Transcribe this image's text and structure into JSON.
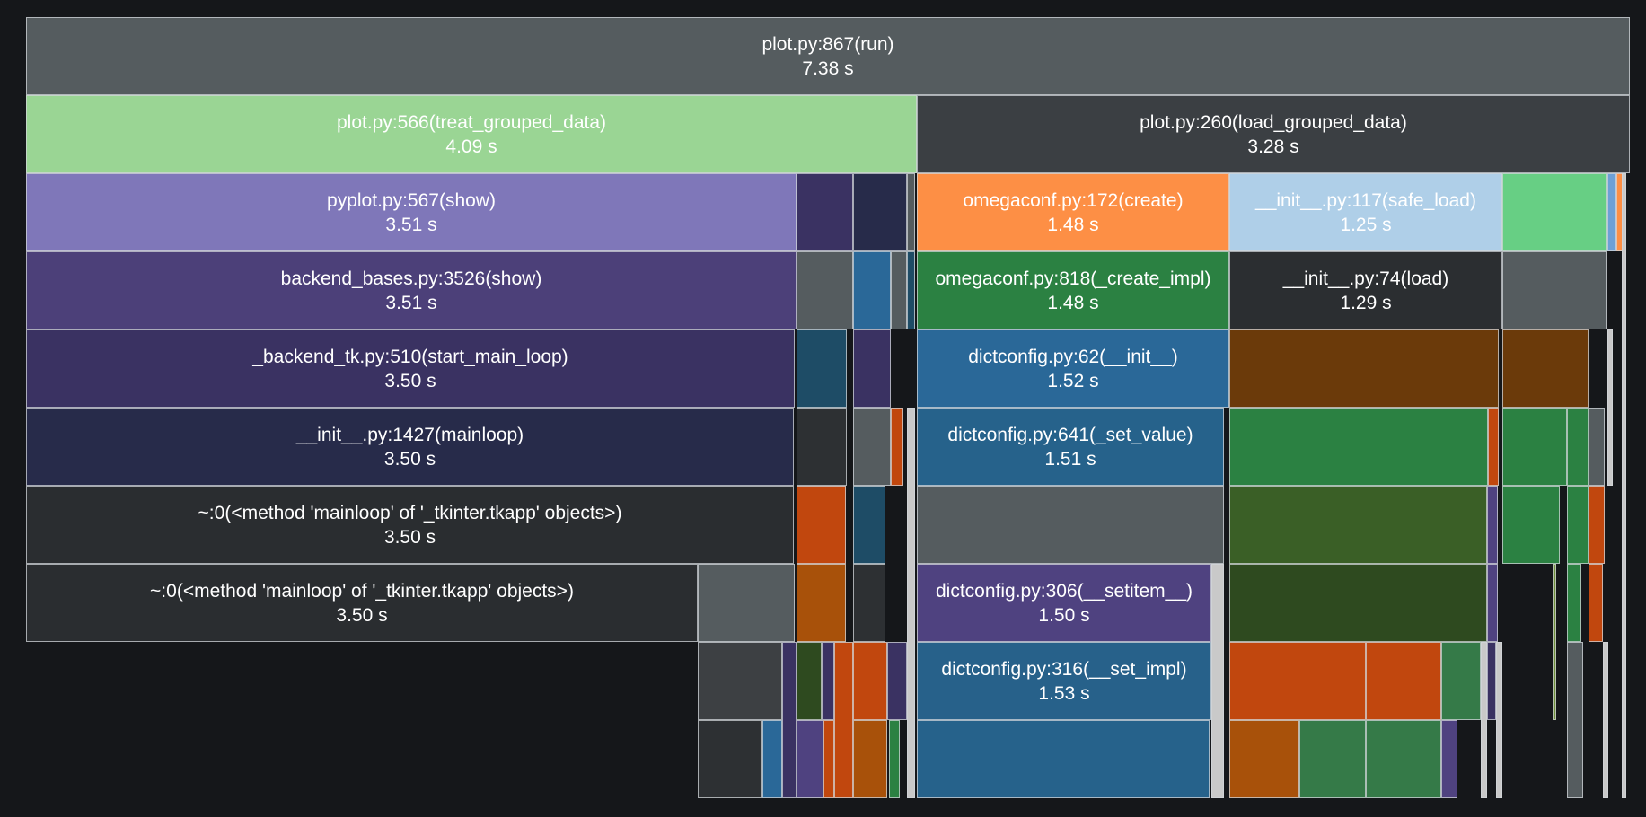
{
  "frames": [
    {
      "name": "root-plot-run",
      "label": "plot.py:867(run)",
      "time": "7.38 s",
      "color": "#555c5f",
      "text": "#ffffff"
    },
    {
      "name": "treat-grouped-data",
      "label": "plot.py:566(treat_grouped_data)",
      "time": "4.09 s",
      "color": "#9ad594",
      "text": "#ffffff"
    },
    {
      "name": "load-grouped-data",
      "label": "plot.py:260(load_grouped_data)",
      "time": "3.28 s",
      "color": "#3b3f43",
      "text": "#ffffff"
    },
    {
      "name": "pyplot-show",
      "label": "pyplot.py:567(show)",
      "time": "3.51 s",
      "color": "#7f77b9",
      "text": "#ffffff"
    },
    {
      "name": "omegaconf-create",
      "label": "omegaconf.py:172(create)",
      "time": "1.48 s",
      "color": "#fd8f45",
      "text": "#ffffff"
    },
    {
      "name": "init-safe-load",
      "label": "__init__.py:117(safe_load)",
      "time": "1.25 s",
      "color": "#afcfe8",
      "text": "#ffffff"
    },
    {
      "name": "backend-bases-show",
      "label": "backend_bases.py:3526(show)",
      "time": "3.51 s",
      "color": "#4c4079",
      "text": "#ffffff"
    },
    {
      "name": "omegaconf-create-impl",
      "label": "omegaconf.py:818(_create_impl)",
      "time": "1.48 s",
      "color": "#2b8142",
      "text": "#ffffff"
    },
    {
      "name": "init-load",
      "label": "__init__.py:74(load)",
      "time": "1.29 s",
      "color": "#2b2e31",
      "text": "#ffffff"
    },
    {
      "name": "backend-tk-start-main-loop",
      "label": "_backend_tk.py:510(start_main_loop)",
      "time": "3.50 s",
      "color": "#3a3262",
      "text": "#ffffff"
    },
    {
      "name": "dictconfig-init",
      "label": "dictconfig.py:62(__init__)",
      "time": "1.52 s",
      "color": "#2a6898",
      "text": "#ffffff"
    },
    {
      "name": "init-mainloop",
      "label": "__init__.py:1427(mainloop)",
      "time": "3.50 s",
      "color": "#272b4a",
      "text": "#ffffff"
    },
    {
      "name": "dictconfig-set-value",
      "label": "dictconfig.py:641(_set_value)",
      "time": "1.51 s",
      "color": "#26628b",
      "text": "#ffffff"
    },
    {
      "name": "tkinter-mainloop-1",
      "label": "~:0(<method 'mainloop' of '_tkinter.tkapp' objects>)",
      "time": "3.50 s",
      "color": "#2a2d30",
      "text": "#ffffff"
    },
    {
      "name": "tkinter-mainloop-2",
      "label": "~:0(<method 'mainloop' of '_tkinter.tkapp' objects>)",
      "time": "3.50 s",
      "color": "#2a2d30",
      "text": "#ffffff"
    },
    {
      "name": "dictconfig-setitem",
      "label": "dictconfig.py:306(__setitem__)",
      "time": "1.50 s",
      "color": "#4f4280",
      "text": "#ffffff"
    },
    {
      "name": "dictconfig-set-impl",
      "label": "dictconfig.py:316(__set_impl)",
      "time": "1.53 s",
      "color": "#27618a",
      "text": "#ffffff"
    }
  ],
  "blocks": [
    {
      "color": "#3a3262"
    },
    {
      "color": "#272b4a"
    },
    {
      "color": "#555c5f"
    },
    {
      "color": "#67cf84"
    },
    {
      "color": "#6da0d6"
    },
    {
      "color": "#fd8f45"
    },
    {
      "color": "#555c5f"
    },
    {
      "color": "#2a6898"
    },
    {
      "color": "#555c5f"
    },
    {
      "color": "#1e4c66"
    },
    {
      "color": "#3a3262"
    },
    {
      "color": "#6b3a0a"
    },
    {
      "color": "#6b3a0a"
    },
    {
      "color": "#555c5f"
    },
    {
      "color": "#2d3033"
    },
    {
      "color": "#555c5f"
    },
    {
      "color": "#c1470e"
    },
    {
      "color": "#2b8142"
    },
    {
      "color": "#c1470e"
    },
    {
      "color": "#2b8142"
    },
    {
      "color": "#2b8142"
    },
    {
      "color": "#555c5f"
    },
    {
      "color": "#c1470e"
    },
    {
      "color": "#1e4c66"
    },
    {
      "color": "#555c5f"
    },
    {
      "color": "#3a5f26"
    },
    {
      "color": "#4f4280"
    },
    {
      "color": "#2b8142"
    },
    {
      "color": "#2b8142"
    },
    {
      "color": "#c1470e"
    },
    {
      "color": "#555c5f"
    },
    {
      "color": "#a8510a"
    },
    {
      "color": "#2d3033"
    },
    {
      "color": "#2e4a1f"
    },
    {
      "color": "#4f4280"
    },
    {
      "color": "#2b8142"
    },
    {
      "color": "#c1470e"
    },
    {
      "color": "#3d4043"
    },
    {
      "color": "#2e4a1f"
    },
    {
      "color": "#3a3262"
    },
    {
      "color": "#c1470e"
    },
    {
      "color": "#c1470e"
    },
    {
      "color": "#c1470e"
    },
    {
      "color": "#357a48"
    },
    {
      "color": "#3a3262"
    },
    {
      "color": "#2d3033"
    },
    {
      "color": "#2a6898"
    },
    {
      "color": "#4f4280"
    },
    {
      "color": "#c1470e"
    },
    {
      "color": "#a8510a"
    },
    {
      "color": "#2b8142"
    },
    {
      "color": "#26628b"
    },
    {
      "color": "#a8510a"
    },
    {
      "color": "#357a48"
    },
    {
      "color": "#357a48"
    },
    {
      "color": "#4f4280"
    }
  ]
}
